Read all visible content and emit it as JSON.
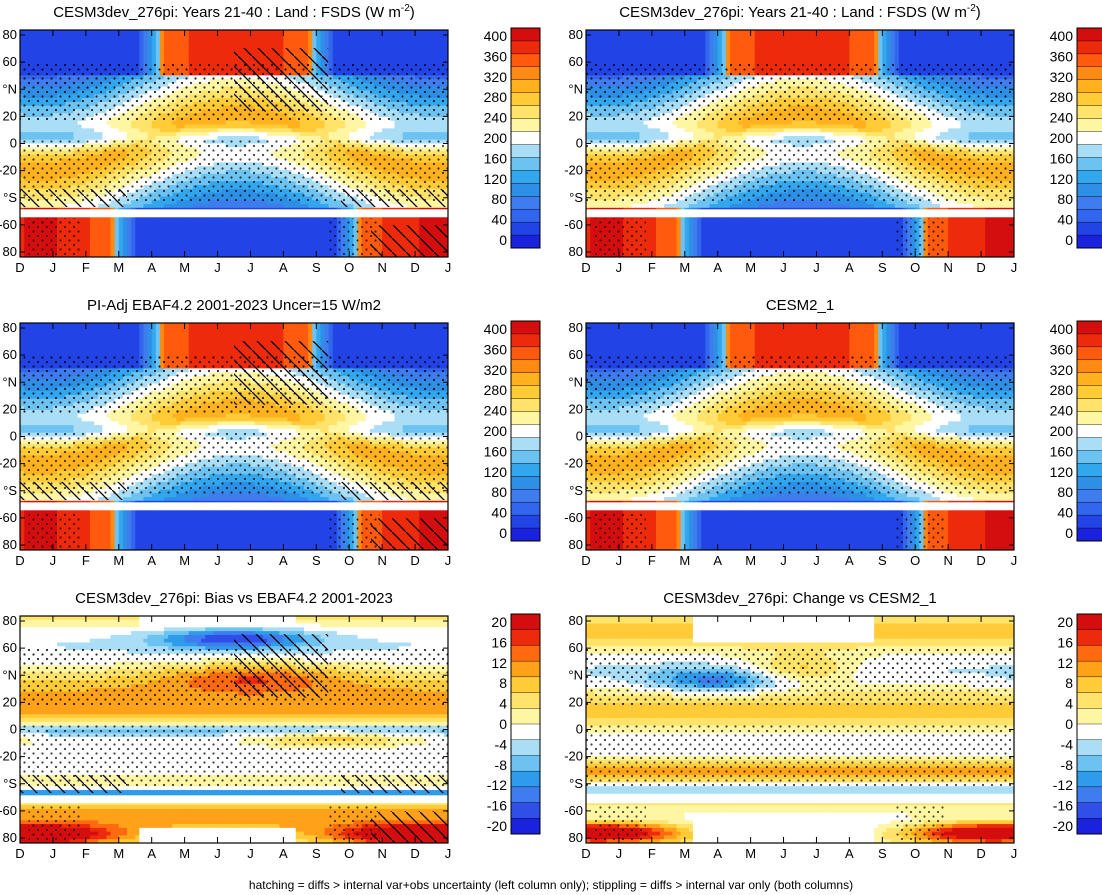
{
  "footnote": "hatching = diffs > internal var+obs uncertainty (left column only); stippling = diffs > internal var only (both columns)",
  "months": [
    "D",
    "J",
    "F",
    "M",
    "A",
    "M",
    "J",
    "J",
    "A",
    "S",
    "O",
    "N",
    "D",
    "J"
  ],
  "lat_ticks": [
    "80",
    "60",
    "°N",
    "20",
    "0",
    "-20",
    "°S",
    "-60",
    "80"
  ],
  "colors": {
    "abs": [
      "#1a22dd",
      "#2244e6",
      "#3366ee",
      "#3f7cee",
      "#2e8fe6",
      "#33a7ee",
      "#6cc3f2",
      "#aadef7",
      "#ffffff",
      "#fff6a4",
      "#ffe36a",
      "#ffcb36",
      "#ffb21e",
      "#ff8a12",
      "#ff5a0e",
      "#ee2a0c",
      "#d40e0e"
    ],
    "diff": [
      "#1a22dd",
      "#2f4fe8",
      "#3f7cee",
      "#2e9cea",
      "#6cc3f2",
      "#aadef7",
      "#ffffff",
      "#fff6a4",
      "#ffe36a",
      "#ffcb36",
      "#ffa21a",
      "#ff6a10",
      "#ee2a0c",
      "#d40e0e"
    ]
  },
  "chart_data": [
    {
      "type": "heatmap",
      "title": "CESM3dev_276pi: Years 21-40 : Land : FSDS (W m",
      "title_sup": "-2",
      "title_tail": ")",
      "x": [
        "D",
        "J",
        "F",
        "M",
        "A",
        "M",
        "J",
        "J",
        "A",
        "S",
        "O",
        "N",
        "D",
        "J"
      ],
      "y_ticks": [
        "80",
        "60",
        "°N",
        "20",
        "0",
        "-20",
        "°S",
        "-60",
        "80"
      ],
      "colorbar_labels": [
        "400",
        "360",
        "320",
        "280",
        "240",
        "200",
        "160",
        "120",
        "80",
        "40",
        "0"
      ],
      "field": "absolute",
      "hatching": true
    },
    {
      "type": "heatmap",
      "title": "CESM3dev_276pi: Years 21-40 : Land : FSDS (W m",
      "title_sup": "-2",
      "title_tail": ")",
      "x": [
        "D",
        "J",
        "F",
        "M",
        "A",
        "M",
        "J",
        "J",
        "A",
        "S",
        "O",
        "N",
        "D",
        "J"
      ],
      "y_ticks": [
        "80",
        "60",
        "°N",
        "20",
        "0",
        "-20",
        "°S",
        "-60",
        "80"
      ],
      "colorbar_labels": [
        "400",
        "360",
        "320",
        "280",
        "240",
        "200",
        "160",
        "120",
        "80",
        "40",
        "0"
      ],
      "field": "absolute",
      "hatching": false
    },
    {
      "type": "heatmap",
      "title": "PI-Adj EBAF4.2 2001-2023 Uncer=15 W/m2",
      "x": [
        "D",
        "J",
        "F",
        "M",
        "A",
        "M",
        "J",
        "J",
        "A",
        "S",
        "O",
        "N",
        "D",
        "J"
      ],
      "y_ticks": [
        "80",
        "60",
        "°N",
        "20",
        "0",
        "-20",
        "°S",
        "-60",
        "80"
      ],
      "colorbar_labels": [
        "400",
        "360",
        "320",
        "280",
        "240",
        "200",
        "160",
        "120",
        "80",
        "40",
        "0"
      ],
      "field": "absolute",
      "hatching": true
    },
    {
      "type": "heatmap",
      "title": "CESM2_1",
      "x": [
        "D",
        "J",
        "F",
        "M",
        "A",
        "M",
        "J",
        "J",
        "A",
        "S",
        "O",
        "N",
        "D",
        "J"
      ],
      "y_ticks": [
        "80",
        "60",
        "°N",
        "20",
        "0",
        "-20",
        "°S",
        "-60",
        "80"
      ],
      "colorbar_labels": [
        "400",
        "360",
        "320",
        "280",
        "240",
        "200",
        "160",
        "120",
        "80",
        "40",
        "0"
      ],
      "field": "absolute",
      "hatching": false
    },
    {
      "type": "heatmap",
      "title": "CESM3dev_276pi: Bias vs EBAF4.2 2001-2023",
      "x": [
        "D",
        "J",
        "F",
        "M",
        "A",
        "M",
        "J",
        "J",
        "A",
        "S",
        "O",
        "N",
        "D",
        "J"
      ],
      "y_ticks": [
        "80",
        "60",
        "°N",
        "20",
        "0",
        "-20",
        "°S",
        "-60",
        "80"
      ],
      "colorbar_labels": [
        "20",
        "16",
        "12",
        "8",
        "4",
        "0",
        "-4",
        "-8",
        "-12",
        "-16",
        "-20"
      ],
      "field": "bias",
      "hatching": true
    },
    {
      "type": "heatmap",
      "title": "CESM3dev_276pi: Change vs CESM2_1",
      "x": [
        "D",
        "J",
        "F",
        "M",
        "A",
        "M",
        "J",
        "J",
        "A",
        "S",
        "O",
        "N",
        "D",
        "J"
      ],
      "y_ticks": [
        "80",
        "60",
        "°N",
        "20",
        "0",
        "-20",
        "°S",
        "-60",
        "80"
      ],
      "colorbar_labels": [
        "20",
        "16",
        "12",
        "8",
        "4",
        "0",
        "-4",
        "-8",
        "-12",
        "-16",
        "-20"
      ],
      "field": "change",
      "hatching": false
    }
  ]
}
